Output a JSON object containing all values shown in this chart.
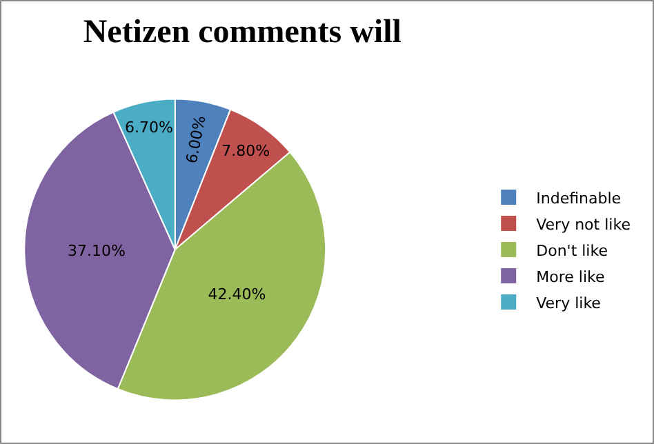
{
  "chart_data": {
    "type": "pie",
    "title": "Netizen comments will",
    "categories": [
      "Indefinable",
      "Very not like",
      "Don't like",
      "More like",
      "Very like"
    ],
    "values": [
      6.0,
      7.8,
      42.4,
      37.1,
      6.7
    ],
    "value_labels": [
      "6.00%",
      "7.80%",
      "42.40%",
      "37.10%",
      "6.70%"
    ],
    "colors": [
      "#4f81bd",
      "#c0504d",
      "#9bbb59",
      "#8064a2",
      "#4bacc6"
    ],
    "legend": "right"
  }
}
